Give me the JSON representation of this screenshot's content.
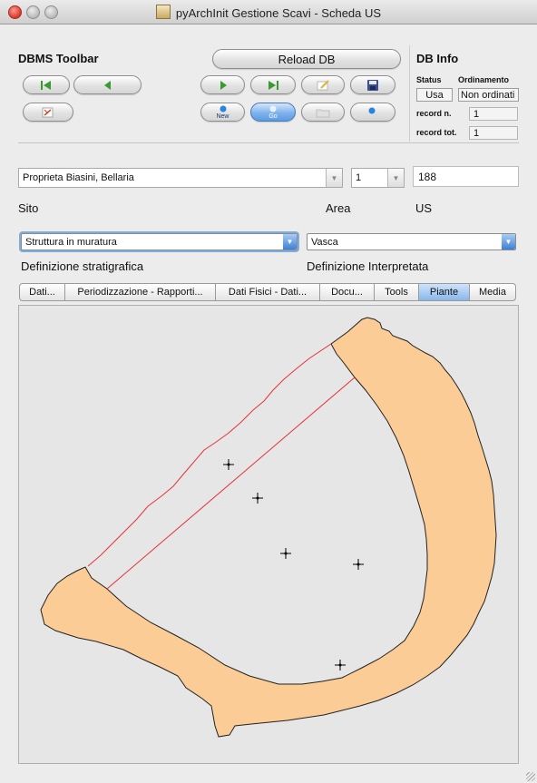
{
  "window": {
    "title": "pyArchInit Gestione Scavi - Scheda US"
  },
  "toolbar": {
    "label": "DBMS Toolbar",
    "reload_label": "Reload DB",
    "new_label": "New",
    "go_label": "Go"
  },
  "db_info": {
    "title": "DB Info",
    "status_label": "Status",
    "status_value": "Usa",
    "order_label": "Ordinamento",
    "order_value": "Non ordinati",
    "record_n_label": "record n.",
    "record_n_value": "1",
    "record_tot_label": "record tot.",
    "record_tot_value": "1"
  },
  "form": {
    "sito_value": "Proprieta Biasini, Bellaria",
    "area_value": "1",
    "us_value": "188",
    "sito_label": "Sito",
    "area_label": "Area",
    "us_label": "US",
    "def_strat_value": "Struttura in muratura",
    "def_interp_value": "Vasca",
    "def_strat_label": "Definizione stratigrafica",
    "def_interp_label": "Definizione Interpretata"
  },
  "tabs": [
    "Dati...",
    "Periodizzazione - Rapporti...",
    "Dati Fisici - Dati...",
    "Docu...",
    "Tools",
    "Piante",
    "Media"
  ],
  "active_tab": "Piante",
  "colors": {
    "feature_fill": "#fbcc95",
    "section_line": "#e8323c",
    "canvas_bg": "#e6e6e6"
  }
}
